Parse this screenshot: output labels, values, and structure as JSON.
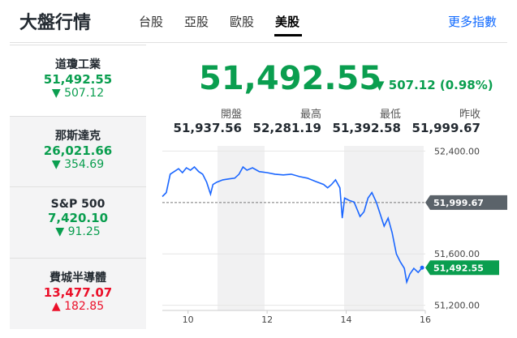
{
  "header": {
    "title": "大盤行情",
    "tabs": [
      "台股",
      "亞股",
      "歐股",
      "美股"
    ],
    "more": "更多指數"
  },
  "indices": [
    {
      "name": "道瓊工業",
      "value": "51,492.55",
      "change": "507.12",
      "direction": "down"
    },
    {
      "name": "那斯達克",
      "value": "26,021.66",
      "change": "354.69",
      "direction": "down"
    },
    {
      "name": "S&P 500",
      "value": "7,420.10",
      "change": "91.25",
      "direction": "down"
    },
    {
      "name": "費城半導體",
      "value": "13,477.07",
      "change": "182.85",
      "direction": "up"
    }
  ],
  "quote": {
    "value": "51,492.55",
    "change": "507.12 (0.98%)",
    "stats": [
      {
        "label": "開盤",
        "value": "51,937.56"
      },
      {
        "label": "最高",
        "value": "52,281.19"
      },
      {
        "label": "最低",
        "value": "51,392.58"
      },
      {
        "label": "昨收",
        "value": "51,999.67"
      }
    ]
  },
  "chart_data": {
    "type": "line",
    "color": "#1a66ff",
    "x": [
      9.35,
      9.45,
      9.55,
      9.65,
      9.76,
      9.86,
      9.96,
      10.06,
      10.16,
      10.27,
      10.37,
      10.47,
      10.57,
      10.63,
      10.73,
      10.88,
      11.02,
      11.18,
      11.29,
      11.39,
      11.49,
      11.63,
      11.8,
      12.0,
      12.2,
      12.41,
      12.61,
      12.82,
      13.02,
      13.22,
      13.43,
      13.53,
      13.63,
      13.73,
      13.84,
      13.9,
      13.96,
      14.08,
      14.2,
      14.35,
      14.45,
      14.55,
      14.65,
      14.76,
      14.86,
      14.96,
      15.06,
      15.16,
      15.27,
      15.37,
      15.47,
      15.53,
      15.61,
      15.71,
      15.82,
      15.92
    ],
    "values": [
      52046,
      52077,
      52220,
      52240,
      52263,
      52232,
      52270,
      52251,
      52276,
      52240,
      52220,
      52158,
      52065,
      52140,
      52158,
      52176,
      52183,
      52189,
      52220,
      52276,
      52251,
      52270,
      52240,
      52232,
      52220,
      52214,
      52220,
      52201,
      52189,
      52164,
      52140,
      52114,
      52140,
      52176,
      52114,
      51878,
      52034,
      52015,
      52003,
      51891,
      51928,
      52034,
      52077,
      52003,
      51909,
      51816,
      51878,
      51766,
      51599,
      51537,
      51487,
      51381,
      51443,
      51487,
      51456,
      51492.55
    ],
    "xlim": [
      9.35,
      16
    ],
    "xticks": [
      10,
      12,
      14,
      16
    ],
    "ylim": [
      51160,
      52440
    ],
    "yticks": [
      {
        "value": 52400,
        "label": "52,400.00"
      },
      {
        "value": 51600,
        "label": "51,600.00"
      },
      {
        "value": 51200,
        "label": "51,200.00"
      }
    ],
    "prev_close": {
      "value": 51999.67,
      "label": "51,999.67"
    },
    "last": {
      "value": 51492.55,
      "label": "51,492.55"
    }
  }
}
